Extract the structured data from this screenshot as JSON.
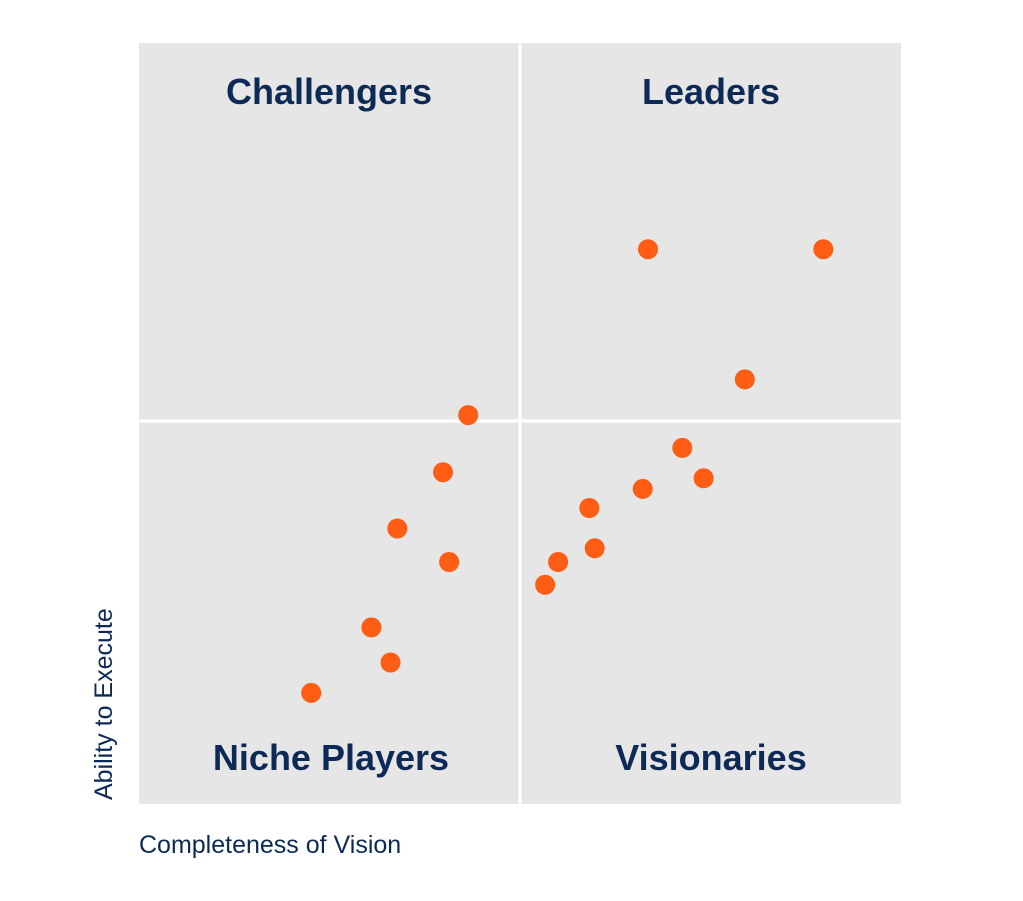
{
  "chart_data": {
    "type": "scatter",
    "title": "",
    "xlabel": "Completeness of Vision",
    "ylabel": "Ability to Execute",
    "xlim": [
      0,
      100
    ],
    "ylim": [
      0,
      100
    ],
    "grid": false,
    "quadrants": {
      "top_left": "Challengers",
      "top_right": "Leaders",
      "bottom_left": "Niche Players",
      "bottom_right": "Visionaries"
    },
    "points": [
      {
        "x": 22.6,
        "y": 14.6
      },
      {
        "x": 30.5,
        "y": 23.2
      },
      {
        "x": 33.0,
        "y": 18.6
      },
      {
        "x": 33.9,
        "y": 36.2
      },
      {
        "x": 39.9,
        "y": 43.6
      },
      {
        "x": 40.7,
        "y": 31.8
      },
      {
        "x": 43.2,
        "y": 51.1
      },
      {
        "x": 53.3,
        "y": 28.8
      },
      {
        "x": 55.0,
        "y": 31.8
      },
      {
        "x": 59.8,
        "y": 33.6
      },
      {
        "x": 59.1,
        "y": 38.9
      },
      {
        "x": 66.1,
        "y": 41.4
      },
      {
        "x": 71.3,
        "y": 46.8
      },
      {
        "x": 74.1,
        "y": 42.8
      },
      {
        "x": 79.5,
        "y": 55.8
      },
      {
        "x": 66.8,
        "y": 72.9
      },
      {
        "x": 89.8,
        "y": 72.9
      }
    ]
  },
  "colors": {
    "quadrant_background": "#e6e6e6",
    "divider": "#ffffff",
    "text": "#0d2a56",
    "point": "#ff5c14"
  }
}
